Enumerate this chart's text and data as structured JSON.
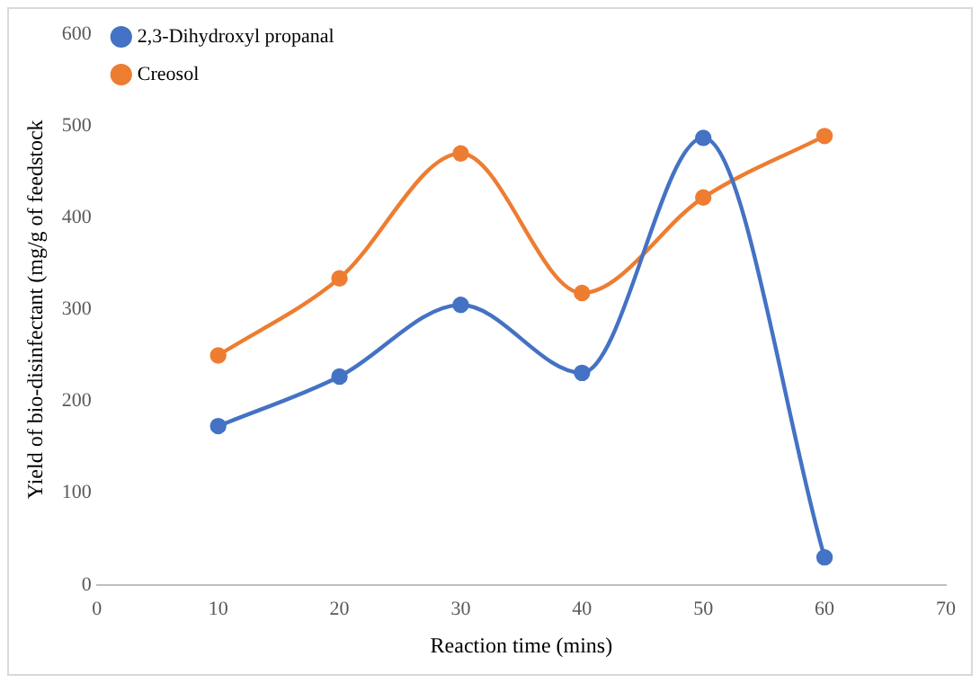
{
  "chart_data": {
    "type": "line",
    "xlabel": "Reaction time (mins)",
    "ylabel": "Yield of bio-disinfectant (mg/g of feedstock",
    "x": [
      10,
      20,
      30,
      40,
      50,
      60
    ],
    "series": [
      {
        "name": "2,3-Dihydroxyl propanal",
        "color": "#4472c4",
        "values": [
          173,
          227,
          305,
          231,
          487,
          30
        ]
      },
      {
        "name": "Creosol",
        "color": "#ed7d31",
        "values": [
          250,
          334,
          470,
          318,
          422,
          489
        ]
      }
    ],
    "xlim": [
      0,
      70
    ],
    "xticks": [
      0,
      10,
      20,
      30,
      40,
      50,
      60,
      70
    ],
    "ylim": [
      0,
      600
    ],
    "yticks": [
      0,
      100,
      200,
      300,
      400,
      500,
      600
    ],
    "grid": false,
    "legend": "top left",
    "marker": "circle",
    "line_style": "solid"
  }
}
